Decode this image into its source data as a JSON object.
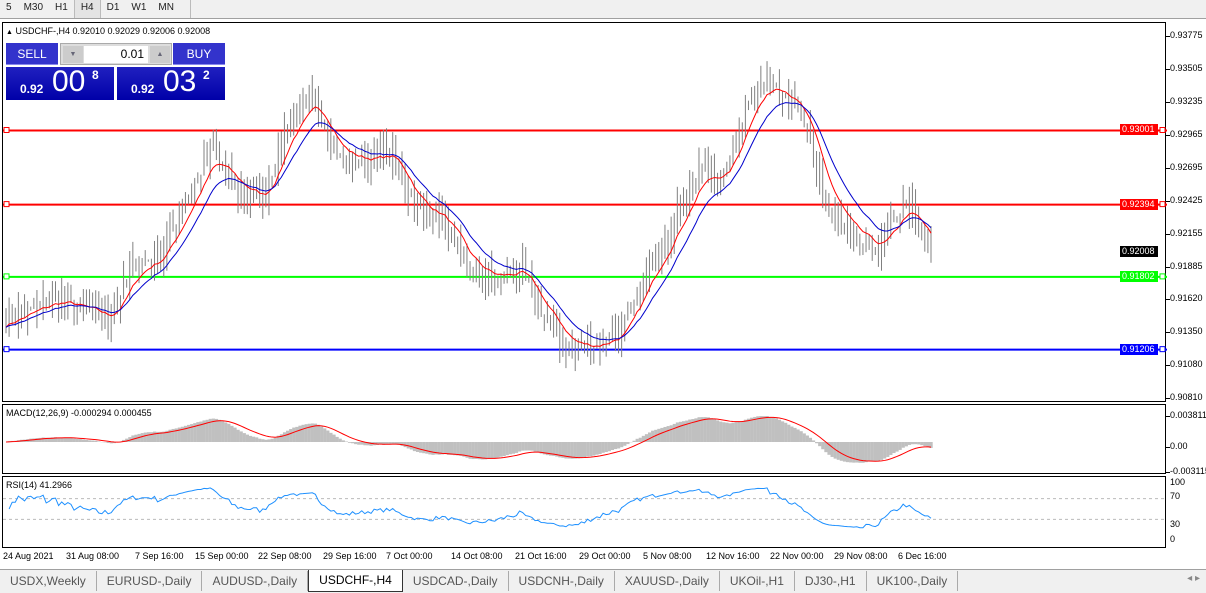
{
  "timeframes": [
    "5",
    "M30",
    "H1",
    "H4",
    "D1",
    "W1",
    "MN"
  ],
  "active_timeframe": "H4",
  "chart": {
    "header": "USDCHF-,H4  0.92010 0.92029 0.92006 0.92008",
    "collapse_icon": "triangle-up-icon"
  },
  "trade_panel": {
    "sell_label": "SELL",
    "buy_label": "BUY",
    "lot": "0.01",
    "sell_small": "0.92",
    "sell_big": "00",
    "sell_pip": "8",
    "buy_small": "0.92",
    "buy_big": "03",
    "buy_pip": "2",
    "color": "#0000a8"
  },
  "price_axis": [
    "0.93775",
    "0.93505",
    "0.93235",
    "0.92965",
    "0.92695",
    "0.92425",
    "0.92155",
    "0.91885",
    "0.91620",
    "0.91350",
    "0.91080",
    "0.90810"
  ],
  "levels": [
    {
      "price": "0.93001",
      "color": "#ff0000"
    },
    {
      "price": "0.92394",
      "color": "#ff0000"
    },
    {
      "price": "0.91802",
      "color": "#00ff00"
    },
    {
      "price": "0.91206",
      "color": "#0000ff"
    }
  ],
  "current_price": {
    "price": "0.92008",
    "color": "#000000"
  },
  "macd": {
    "label": "MACD(12,26,9) -0.000294 0.000455",
    "axis": [
      "0.003811",
      "0.00",
      "-0.003115"
    ]
  },
  "rsi": {
    "label": "RSI(14) 41.2966",
    "axis": [
      "100",
      "70",
      "30",
      "0"
    ]
  },
  "time_axis": [
    "24 Aug 2021",
    "31 Aug 08:00",
    "7 Sep 16:00",
    "15 Sep 00:00",
    "22 Sep 08:00",
    "29 Sep 16:00",
    "7 Oct 00:00",
    "14 Oct 08:00",
    "21 Oct 16:00",
    "29 Oct 00:00",
    "5 Nov 08:00",
    "12 Nov 16:00",
    "22 Nov 00:00",
    "29 Nov 08:00",
    "6 Dec 16:00"
  ],
  "tabs": [
    "USDX,Weekly",
    "EURUSD-,Daily",
    "AUDUSD-,Daily",
    "USDCHF-,H4",
    "USDCAD-,Daily",
    "USDCNH-,Daily",
    "XAUUSD-,Daily",
    "UKOil-,H1",
    "DJ30-,H1",
    "UK100-,Daily"
  ],
  "active_tab": "USDCHF-,H4",
  "chart_data": {
    "type": "line",
    "symbol": "USDCHF",
    "timeframe": "H4",
    "ylim": [
      0.9081,
      0.93775
    ],
    "approx_close_path": [
      0.91449,
      0.91531,
      0.91613,
      0.91531,
      0.91449,
      0.919,
      0.91981,
      0.92432,
      0.92841,
      0.92514,
      0.92432,
      0.93087,
      0.93251,
      0.92759,
      0.92759,
      0.928,
      0.9235,
      0.92268,
      0.91859,
      0.91777,
      0.91859,
      0.91449,
      0.91204,
      0.91244,
      0.91367,
      0.91859,
      0.92268,
      0.92678,
      0.92637,
      0.93333,
      0.93415,
      0.93087,
      0.9235,
      0.92104,
      0.92022,
      0.92432,
      0.92008
    ],
    "series": [
      {
        "type": "bars",
        "color": "#808080"
      },
      {
        "type": "ma-fast",
        "color": "#ff0000"
      },
      {
        "type": "ma-slow",
        "color": "#0000cc"
      }
    ]
  }
}
